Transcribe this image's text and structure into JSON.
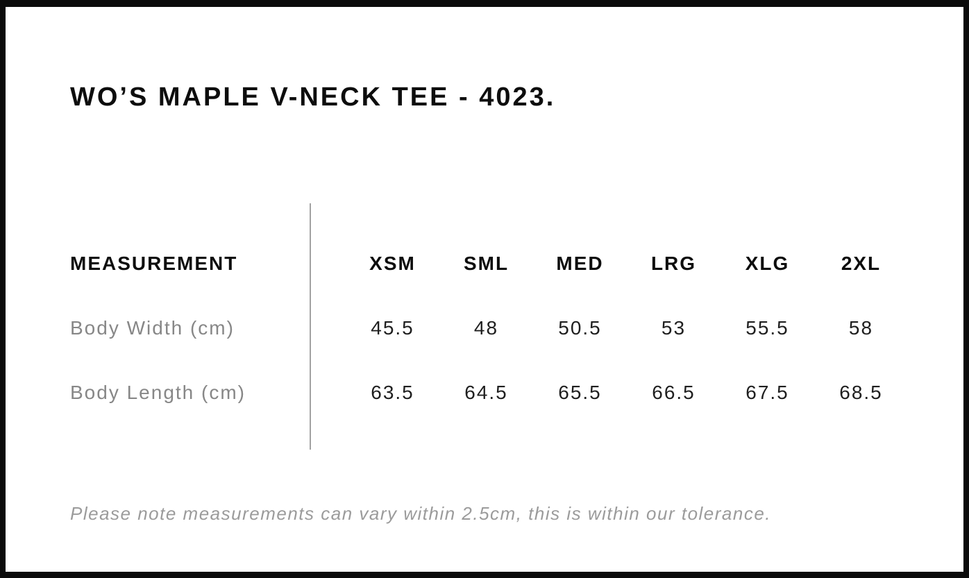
{
  "product": {
    "title": "WO’S MAPLE V-NECK TEE - 4023."
  },
  "table": {
    "measurement_header": "MEASUREMENT",
    "sizes": [
      "XSM",
      "SML",
      "MED",
      "LRG",
      "XLG",
      "2XL"
    ],
    "rows": [
      {
        "label": "Body Width (cm)",
        "values": [
          "45.5",
          "48",
          "50.5",
          "53",
          "55.5",
          "58"
        ]
      },
      {
        "label": "Body Length (cm)",
        "values": [
          "63.5",
          "64.5",
          "65.5",
          "66.5",
          "67.5",
          "68.5"
        ]
      }
    ]
  },
  "footnote": "Please note measurements can vary within 2.5cm, this is within our tolerance.",
  "colors": {
    "border": "#0b0b0b",
    "heading_text": "#0d0d0d",
    "value_text": "#1f1f1f",
    "label_gray": "#878787",
    "footnote_gray": "#9b9b9b",
    "divider_gray": "#a2a2a2",
    "background": "#ffffff"
  }
}
